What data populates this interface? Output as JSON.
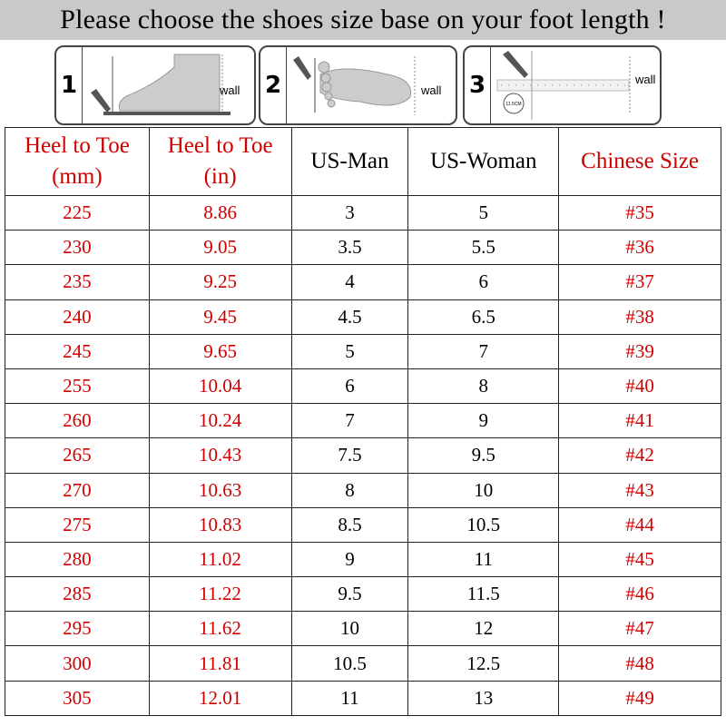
{
  "title": "Please choose the shoes size base on your foot length !",
  "steps": [
    {
      "number": "1",
      "wall_label": "wall",
      "icon": "foot-side-view-icon"
    },
    {
      "number": "2",
      "wall_label": "wall",
      "icon": "foot-top-view-icon"
    },
    {
      "number": "3",
      "wall_label": "wall",
      "icon": "ruler-measure-icon",
      "badge": "11.5CM"
    }
  ],
  "colors": {
    "accent_red": "#d00000",
    "title_bar": "#c9c9c9"
  },
  "table": {
    "headers": [
      {
        "line1": "Heel to Toe",
        "line2": "(mm)",
        "color": "red"
      },
      {
        "line1": "Heel to Toe",
        "line2": "(in)",
        "color": "red"
      },
      {
        "line1": "US-Man",
        "line2": "",
        "color": "black"
      },
      {
        "line1": "US-Woman",
        "line2": "",
        "color": "black"
      },
      {
        "line1": "Chinese Size",
        "line2": "",
        "color": "red"
      }
    ],
    "rows": [
      [
        "225",
        "8.86",
        "3",
        "5",
        "#35"
      ],
      [
        "230",
        "9.05",
        "3.5",
        "5.5",
        "#36"
      ],
      [
        "235",
        "9.25",
        "4",
        "6",
        "#37"
      ],
      [
        "240",
        "9.45",
        "4.5",
        "6.5",
        "#38"
      ],
      [
        "245",
        "9.65",
        "5",
        "7",
        "#39"
      ],
      [
        "255",
        "10.04",
        "6",
        "8",
        "#40"
      ],
      [
        "260",
        "10.24",
        "7",
        "9",
        "#41"
      ],
      [
        "265",
        "10.43",
        "7.5",
        "9.5",
        "#42"
      ],
      [
        "270",
        "10.63",
        "8",
        "10",
        "#43"
      ],
      [
        "275",
        "10.83",
        "8.5",
        "10.5",
        "#44"
      ],
      [
        "280",
        "11.02",
        "9",
        "11",
        "#45"
      ],
      [
        "285",
        "11.22",
        "9.5",
        "11.5",
        "#46"
      ],
      [
        "295",
        "11.62",
        "10",
        "12",
        "#47"
      ],
      [
        "300",
        "11.81",
        "10.5",
        "12.5",
        "#48"
      ],
      [
        "305",
        "12.01",
        "11",
        "13",
        "#49"
      ]
    ]
  }
}
